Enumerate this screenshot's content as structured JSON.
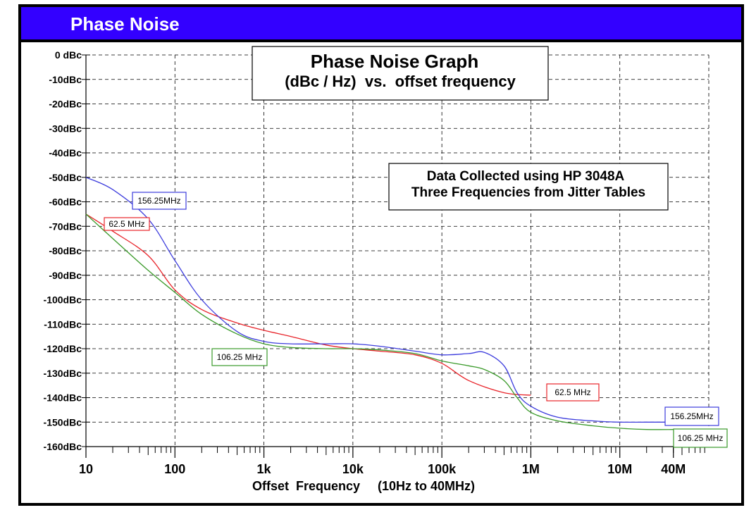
{
  "header": {
    "title": "Phase Noise"
  },
  "colors": {
    "banner": "#3300ff",
    "series_62_5": "#e8242a",
    "series_106_25": "#3a9a2a",
    "series_156_25": "#3d3ddd",
    "grid": "#000000"
  },
  "chart_data": {
    "type": "line",
    "title": "Phase Noise Graph",
    "subtitle": "(dBc / Hz)  vs.  offset frequency",
    "xlabel": "Offset  Frequency     (10Hz to 40MHz)",
    "ylabel": "",
    "x_scale": "log",
    "xlim": [
      10,
      100000000
    ],
    "ylim": [
      -160,
      0
    ],
    "x_ticks": [
      {
        "value": 10,
        "label": "10"
      },
      {
        "value": 100,
        "label": "100"
      },
      {
        "value": 1000,
        "label": "1k"
      },
      {
        "value": 10000,
        "label": "10k"
      },
      {
        "value": 100000,
        "label": "100k"
      },
      {
        "value": 1000000,
        "label": "1M"
      },
      {
        "value": 10000000,
        "label": "10M"
      },
      {
        "value": 40000000,
        "label": "40M"
      }
    ],
    "y_ticks": [
      {
        "value": 0,
        "label": "0 dBc"
      },
      {
        "value": -10,
        "label": "-10dBc"
      },
      {
        "value": -20,
        "label": "-20dBc"
      },
      {
        "value": -30,
        "label": "-30dBc"
      },
      {
        "value": -40,
        "label": "-40dBc"
      },
      {
        "value": -50,
        "label": "-50dBc"
      },
      {
        "value": -60,
        "label": "-60dBc"
      },
      {
        "value": -70,
        "label": "-70dBc"
      },
      {
        "value": -80,
        "label": "-80dBc"
      },
      {
        "value": -90,
        "label": "-90dBc"
      },
      {
        "value": -100,
        "label": "-100dBc"
      },
      {
        "value": -110,
        "label": "-110dBc"
      },
      {
        "value": -120,
        "label": "-120dBc"
      },
      {
        "value": -130,
        "label": "-130dBc"
      },
      {
        "value": -140,
        "label": "-140dBc"
      },
      {
        "value": -150,
        "label": "-150dBc"
      },
      {
        "value": -160,
        "label": "-160dBc"
      }
    ],
    "grid": true,
    "annotation": [
      "Data Collected using HP 3048A",
      "Three Frequencies from Jitter Tables"
    ],
    "series": [
      {
        "name": "62.5 MHz",
        "color": "#e8242a",
        "x": [
          10,
          20,
          50,
          100,
          200,
          500,
          1000,
          2000,
          5000,
          10000,
          20000,
          50000,
          100000,
          200000,
          500000,
          1000000
        ],
        "y": [
          -65,
          -72,
          -82,
          -96,
          -104,
          -109.5,
          -112.5,
          -115,
          -118.5,
          -120,
          -121,
          -122.5,
          -126,
          -133,
          -138,
          -139
        ]
      },
      {
        "name": "106.25 MHz",
        "color": "#3a9a2a",
        "x": [
          10,
          20,
          50,
          100,
          200,
          500,
          1000,
          2000,
          5000,
          10000,
          20000,
          50000,
          100000,
          200000,
          300000,
          500000,
          700000,
          1000000,
          2000000,
          5000000,
          10000000,
          20000000,
          40000000
        ],
        "y": [
          -65,
          -75,
          -88,
          -97,
          -106,
          -114,
          -118,
          -119.5,
          -120,
          -120,
          -120.5,
          -122,
          -125,
          -127,
          -128.5,
          -133,
          -140,
          -146,
          -149.5,
          -151.5,
          -152.5,
          -153,
          -153
        ]
      },
      {
        "name": "156.25MHz",
        "color": "#3d3ddd",
        "x": [
          10,
          20,
          50,
          100,
          200,
          500,
          1000,
          2000,
          5000,
          10000,
          20000,
          50000,
          100000,
          200000,
          300000,
          500000,
          700000,
          1000000,
          2000000,
          5000000,
          10000000,
          20000000,
          40000000
        ],
        "y": [
          -50,
          -55,
          -67,
          -84,
          -100,
          -113,
          -117,
          -118,
          -118,
          -118,
          -119,
          -121,
          -122.5,
          -122,
          -121.5,
          -127,
          -138,
          -143.5,
          -148,
          -149.5,
          -150,
          -150,
          -150
        ]
      }
    ],
    "labels": [
      {
        "text": "156.25MHz",
        "series": "156.25MHz"
      },
      {
        "text": "62.5 MHz",
        "series": "62.5 MHz"
      },
      {
        "text": "106.25 MHz",
        "series": "106.25 MHz"
      },
      {
        "text": "62.5 MHz",
        "series": "62.5 MHz"
      },
      {
        "text": "156.25MHz",
        "series": "156.25MHz"
      },
      {
        "text": "106.25 MHz",
        "series": "106.25 MHz"
      }
    ]
  }
}
